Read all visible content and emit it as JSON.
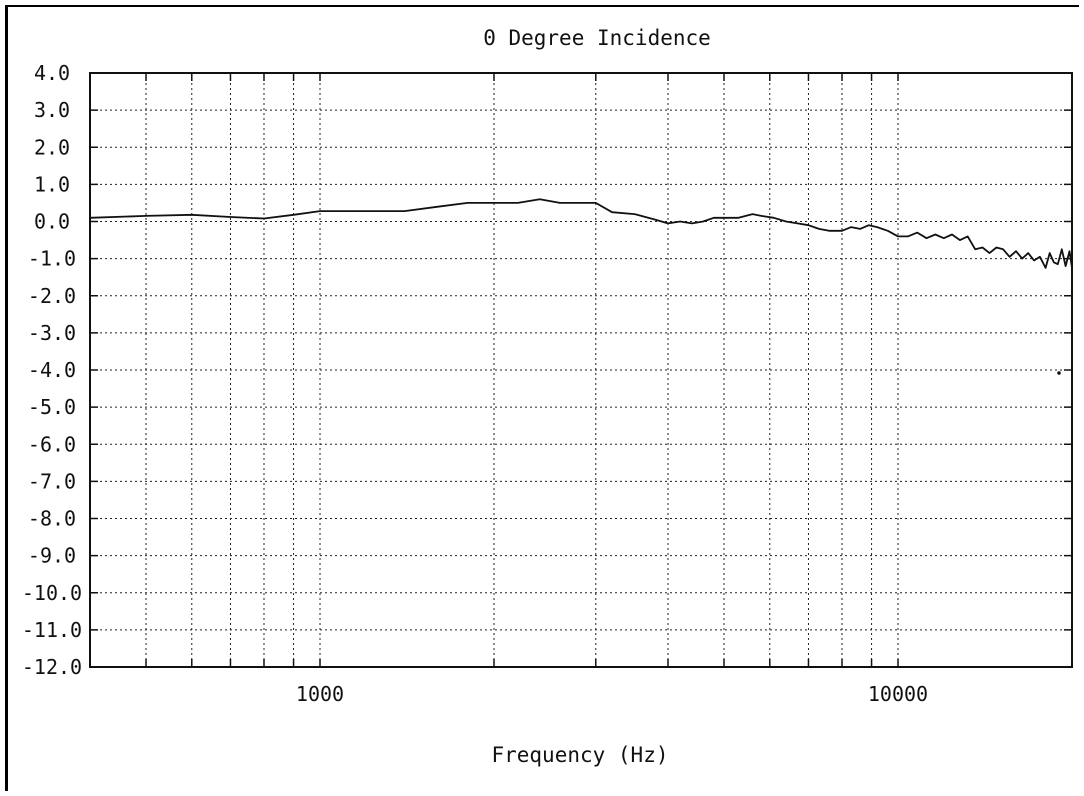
{
  "chart_data": {
    "type": "line",
    "title": "0 Degree Incidence",
    "xlabel": "Frequency (Hz)",
    "ylabel": "",
    "xscale": "log",
    "xlim": [
      400,
      20000
    ],
    "ylim": [
      -12,
      4
    ],
    "grid": true,
    "legend": "none",
    "line_color": "#111111",
    "y_ticks": [
      {
        "value": 4,
        "label": "4.0"
      },
      {
        "value": 3,
        "label": "3.0"
      },
      {
        "value": 2,
        "label": "2.0"
      },
      {
        "value": 1,
        "label": "1.0"
      },
      {
        "value": 0,
        "label": "0.0"
      },
      {
        "value": -1,
        "label": "-1.0"
      },
      {
        "value": -2,
        "label": "-2.0"
      },
      {
        "value": -3,
        "label": "-3.0"
      },
      {
        "value": -4,
        "label": "-4.0"
      },
      {
        "value": -5,
        "label": "-5.0"
      },
      {
        "value": -6,
        "label": "-6.0"
      },
      {
        "value": -7,
        "label": "-7.0"
      },
      {
        "value": -8,
        "label": "-8.0"
      },
      {
        "value": -9,
        "label": "-9.0"
      },
      {
        "value": -10,
        "label": "-10.0"
      },
      {
        "value": -11,
        "label": "-11.0"
      },
      {
        "value": -12,
        "label": "-12.0"
      }
    ],
    "x_ticks": [
      {
        "value": 1000,
        "label": "1000"
      },
      {
        "value": 10000,
        "label": "10000"
      }
    ],
    "x_minor_grid": [
      500,
      600,
      700,
      800,
      900,
      2000,
      3000,
      4000,
      5000,
      6000,
      7000,
      8000,
      9000
    ],
    "series": [
      {
        "x": [
          400,
          500,
          600,
          700,
          800,
          900,
          1000,
          1100,
          1200,
          1400,
          1600,
          1800,
          2000,
          2200,
          2400,
          2600,
          2800,
          3000,
          3200,
          3500,
          3800,
          4000,
          4200,
          4400,
          4600,
          4800,
          5000,
          5300,
          5600,
          5800,
          6100,
          6400,
          6700,
          7000,
          7300,
          7600,
          8000,
          8300,
          8600,
          8900,
          9200,
          9600,
          10000,
          10400,
          10800,
          11200,
          11600,
          12000,
          12400,
          12800,
          13200,
          13600,
          14000,
          14400,
          14800,
          15200,
          15600,
          16000,
          16400,
          16800,
          17200,
          17600,
          18000,
          18300,
          18600,
          18900,
          19200,
          19500,
          19800,
          20000
        ],
        "y": [
          0.1,
          0.15,
          0.18,
          0.12,
          0.08,
          0.18,
          0.28,
          0.28,
          0.28,
          0.28,
          0.4,
          0.5,
          0.5,
          0.5,
          0.6,
          0.5,
          0.5,
          0.5,
          0.25,
          0.2,
          0.05,
          -0.05,
          0.0,
          -0.05,
          0.0,
          0.1,
          0.1,
          0.1,
          0.2,
          0.15,
          0.1,
          0.0,
          -0.05,
          -0.1,
          -0.2,
          -0.25,
          -0.25,
          -0.15,
          -0.2,
          -0.1,
          -0.15,
          -0.25,
          -0.4,
          -0.4,
          -0.3,
          -0.45,
          -0.35,
          -0.45,
          -0.35,
          -0.5,
          -0.4,
          -0.75,
          -0.7,
          -0.85,
          -0.7,
          -0.75,
          -0.95,
          -0.8,
          -1.0,
          -0.85,
          -1.05,
          -0.95,
          -1.25,
          -0.85,
          -1.1,
          -1.15,
          -0.75,
          -1.2,
          -0.8,
          -1.25
        ]
      }
    ]
  }
}
